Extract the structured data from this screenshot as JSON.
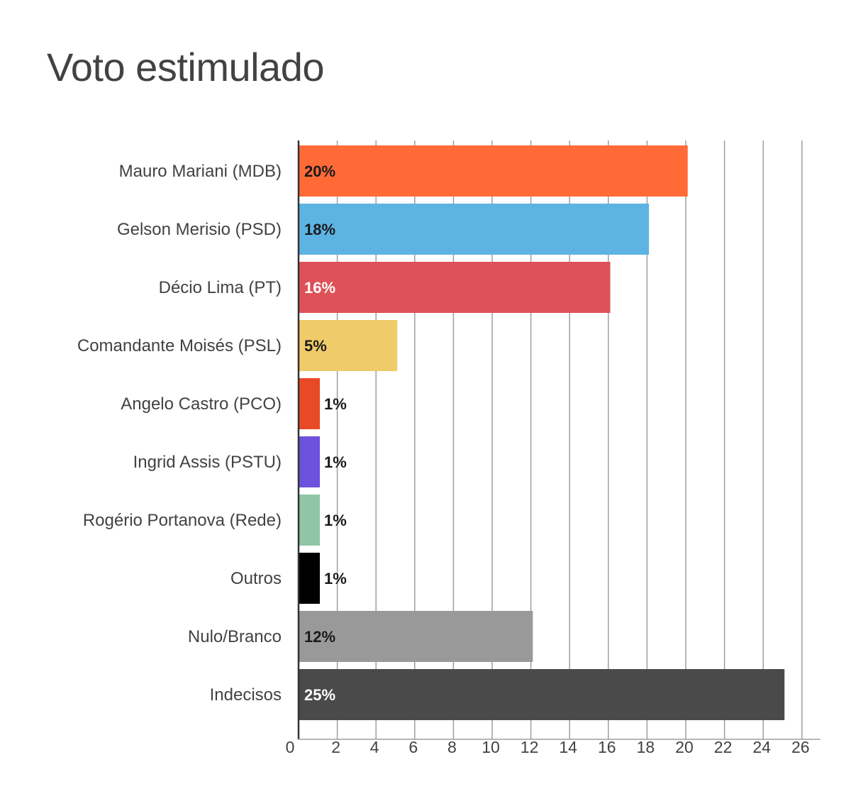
{
  "chart_data": {
    "type": "bar",
    "orientation": "horizontal",
    "title": "Voto estimulado",
    "xlabel": "",
    "ylabel": "",
    "xlim": [
      0,
      26
    ],
    "ticks": [
      "0",
      "2",
      "4",
      "6",
      "8",
      "10",
      "12",
      "14",
      "16",
      "18",
      "20",
      "22",
      "24",
      "26"
    ],
    "grid": true,
    "categories": [
      "Mauro Mariani (MDB)",
      "Gelson Merisio (PSD)",
      "Décio Lima (PT)",
      "Comandante Moisés (PSL)",
      "Angelo Castro (PCO)",
      "Ingrid Assis (PSTU)",
      "Rogério Portanova (Rede)",
      "Outros",
      "Nulo/Branco",
      "Indecisos"
    ],
    "values": [
      20,
      18,
      16,
      5,
      1,
      1,
      1,
      1,
      12,
      25
    ],
    "data_labels": [
      "20%",
      "18%",
      "16%",
      "5%",
      "1%",
      "1%",
      "1%",
      "1%",
      "12%",
      "25%"
    ],
    "colors": [
      "#ff6a36",
      "#5db4e3",
      "#de5158",
      "#efcb69",
      "#e84a25",
      "#6c52dd",
      "#8fc6a5",
      "#000000",
      "#999999",
      "#4a4a4a"
    ],
    "label_colors": [
      "#1a1a1a",
      "#1a1a1a",
      "#ffffff",
      "#1a1a1a",
      "#1a1a1a",
      "#1a1a1a",
      "#1a1a1a",
      "#1a1a1a",
      "#1a1a1a",
      "#ffffff"
    ]
  }
}
